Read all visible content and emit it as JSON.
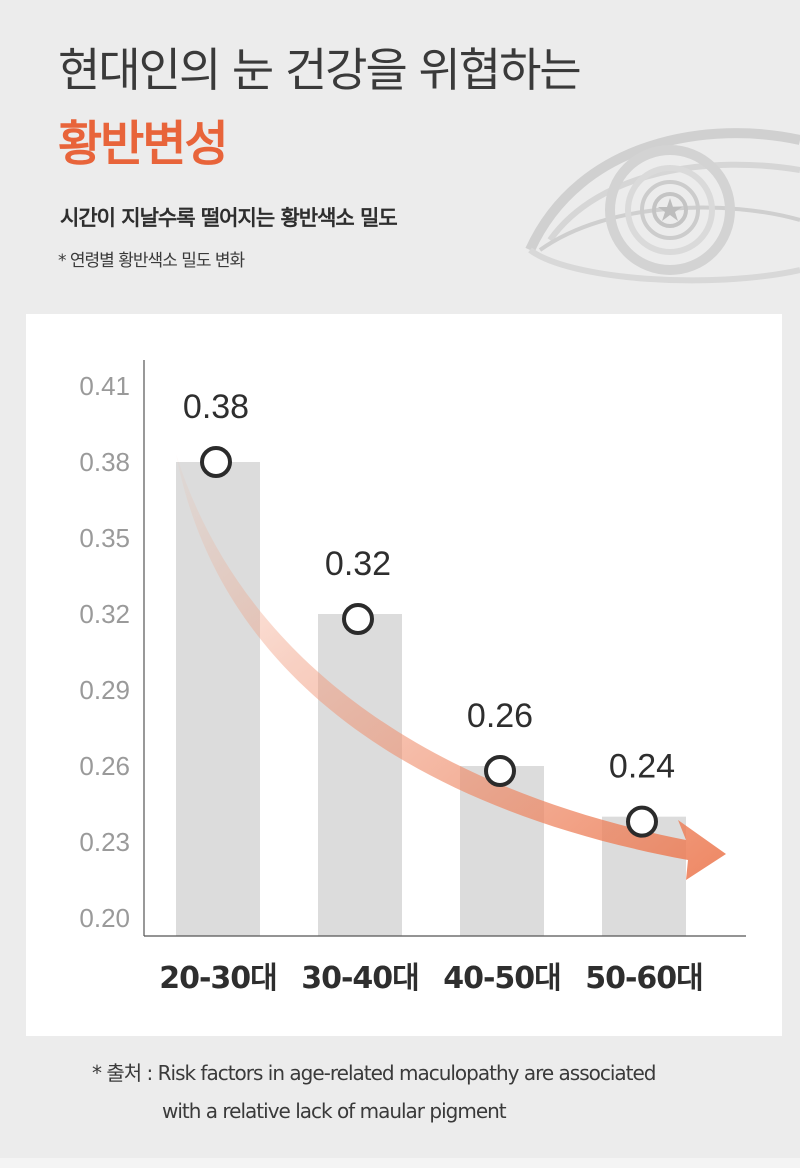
{
  "header": {
    "title_line1": "현대인의 눈 건강을 위협하는",
    "title_line2": "황반변성",
    "subtitle": "시간이 지날수록 떨어지는 황반색소 밀도",
    "note": "* 연령별 황반색소 밀도 변화"
  },
  "colors": {
    "accent": "#e8643a",
    "bar": "#dcdcdc",
    "text": "#3a3a3a"
  },
  "chart_data": {
    "type": "bar",
    "categories": [
      "20-30대",
      "30-40대",
      "40-50대",
      "50-60대"
    ],
    "values": [
      0.38,
      0.32,
      0.26,
      0.24
    ],
    "data_labels": [
      "0.38",
      "0.32",
      "0.26",
      "0.24"
    ],
    "y_ticks": [
      "0.41",
      "0.38",
      "0.35",
      "0.32",
      "0.29",
      "0.26",
      "0.23",
      "0.20"
    ],
    "ylim": [
      0.2,
      0.41
    ],
    "trend_arrow": "downward",
    "title": "",
    "xlabel": "",
    "ylabel": ""
  },
  "source": {
    "line1": "* 출처 : Risk factors in age-related maculopathy are associated",
    "line2": "with a relative lack of maular pigment"
  },
  "icons": [
    "eye-icon"
  ]
}
